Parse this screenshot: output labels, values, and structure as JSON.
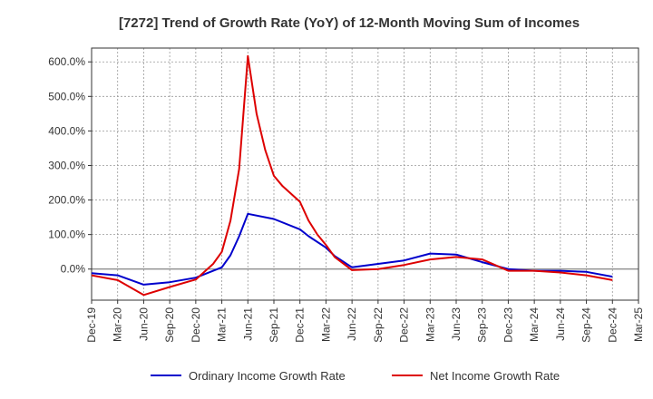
{
  "chart_data": {
    "type": "line",
    "title": "[7272]  Trend of Growth Rate (YoY) of 12-Month Moving Sum of Incomes",
    "xlabel": "",
    "ylabel": "",
    "x_ticks": [
      "Dec-19",
      "Mar-20",
      "Jun-20",
      "Sep-20",
      "Dec-20",
      "Mar-21",
      "Jun-21",
      "Sep-21",
      "Dec-21",
      "Mar-22",
      "Jun-22",
      "Sep-22",
      "Dec-22",
      "Mar-23",
      "Jun-23",
      "Sep-23",
      "Dec-23",
      "Mar-24",
      "Jun-24",
      "Sep-24",
      "Dec-24",
      "Mar-25"
    ],
    "y_ticks": [
      "0.0%",
      "100.0%",
      "200.0%",
      "300.0%",
      "400.0%",
      "500.0%",
      "600.0%"
    ],
    "ylim": [
      -90,
      640
    ],
    "grid": true,
    "legend_position": "bottom",
    "series": [
      {
        "name": "Ordinary Income Growth Rate",
        "color": "#0000cc",
        "points": [
          [
            "2019-12",
            -12
          ],
          [
            "2020-03",
            -18
          ],
          [
            "2020-06",
            -45
          ],
          [
            "2020-09",
            -38
          ],
          [
            "2020-12",
            -25
          ],
          [
            "2021-03",
            5
          ],
          [
            "2021-04",
            40
          ],
          [
            "2021-05",
            95
          ],
          [
            "2021-06",
            160
          ],
          [
            "2021-09",
            145
          ],
          [
            "2021-12",
            115
          ],
          [
            "2022-01",
            95
          ],
          [
            "2022-03",
            62
          ],
          [
            "2022-04",
            38
          ],
          [
            "2022-06",
            5
          ],
          [
            "2022-09",
            15
          ],
          [
            "2022-12",
            25
          ],
          [
            "2023-03",
            45
          ],
          [
            "2023-06",
            42
          ],
          [
            "2023-09",
            20
          ],
          [
            "2023-12",
            0
          ],
          [
            "2024-03",
            -5
          ],
          [
            "2024-06",
            -5
          ],
          [
            "2024-09",
            -8
          ],
          [
            "2024-12",
            -22
          ]
        ]
      },
      {
        "name": "Net Income Growth Rate",
        "color": "#dd0000",
        "points": [
          [
            "2019-12",
            -18
          ],
          [
            "2020-03",
            -32
          ],
          [
            "2020-06",
            -75
          ],
          [
            "2020-09",
            -52
          ],
          [
            "2020-12",
            -30
          ],
          [
            "2021-02",
            15
          ],
          [
            "2021-03",
            50
          ],
          [
            "2021-04",
            140
          ],
          [
            "2021-05",
            290
          ],
          [
            "2021-06",
            617
          ],
          [
            "2021-07",
            450
          ],
          [
            "2021-08",
            345
          ],
          [
            "2021-09",
            270
          ],
          [
            "2021-10",
            240
          ],
          [
            "2021-12",
            195
          ],
          [
            "2022-01",
            140
          ],
          [
            "2022-02",
            100
          ],
          [
            "2022-03",
            70
          ],
          [
            "2022-04",
            35
          ],
          [
            "2022-06",
            -3
          ],
          [
            "2022-09",
            0
          ],
          [
            "2022-12",
            12
          ],
          [
            "2023-03",
            28
          ],
          [
            "2023-06",
            35
          ],
          [
            "2023-09",
            28
          ],
          [
            "2023-12",
            -5
          ],
          [
            "2024-03",
            -5
          ],
          [
            "2024-06",
            -10
          ],
          [
            "2024-09",
            -18
          ],
          [
            "2024-12",
            -32
          ]
        ]
      }
    ]
  }
}
